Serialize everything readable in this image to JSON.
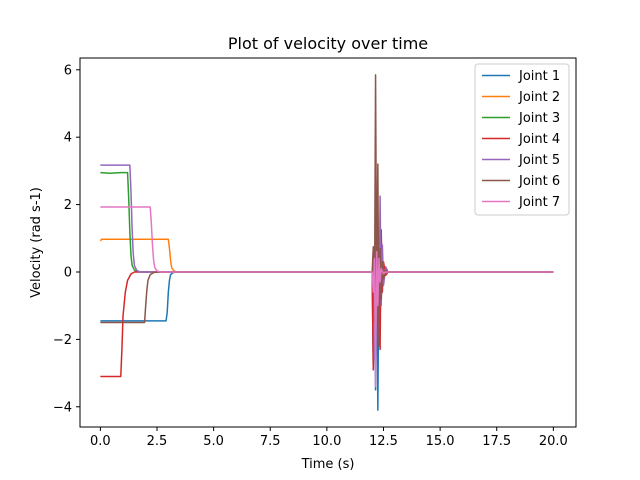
{
  "chart_data": {
    "type": "line",
    "title": "Plot of velocity over time",
    "xlabel": "Time (s)",
    "ylabel": "Velocity (rad s-1)",
    "xlim": [
      -0.9,
      21.0
    ],
    "ylim": [
      -4.6,
      6.35
    ],
    "xticks": [
      0.0,
      2.5,
      5.0,
      7.5,
      10.0,
      12.5,
      15.0,
      17.5,
      20.0
    ],
    "xtick_labels": [
      "0.0",
      "2.5",
      "5.0",
      "7.5",
      "10.0",
      "12.5",
      "15.0",
      "17.5",
      "20.0"
    ],
    "yticks": [
      -4,
      -2,
      0,
      2,
      4,
      6
    ],
    "ytick_labels": [
      "−4",
      "−2",
      "0",
      "2",
      "4",
      "6"
    ],
    "grid": false,
    "legend_position": "top-right",
    "series": [
      {
        "name": "Joint 1",
        "color": "#1f77b4",
        "x": [
          0,
          2.9,
          2.95,
          3.0,
          3.05,
          3.1,
          3.2,
          3.35,
          12.0,
          12.05,
          12.1,
          12.15,
          12.2,
          12.25,
          12.3,
          12.35,
          12.4,
          12.5,
          12.6,
          12.7,
          20.0
        ],
        "y": [
          -1.45,
          -1.45,
          -1.2,
          -0.6,
          -0.25,
          -0.08,
          -0.02,
          0,
          0,
          -2.9,
          0.2,
          -3.5,
          0.5,
          -4.1,
          0.3,
          -0.5,
          0.1,
          -0.1,
          0.03,
          0,
          0
        ]
      },
      {
        "name": "Joint 2",
        "color": "#ff7f0e",
        "x": [
          0,
          0.05,
          3.0,
          3.05,
          3.1,
          3.15,
          3.25,
          3.4,
          12.0,
          12.1,
          12.2,
          12.3,
          12.4,
          12.5,
          12.6,
          20.0
        ],
        "y": [
          0.92,
          0.97,
          0.97,
          0.7,
          0.35,
          0.12,
          0.03,
          0,
          0,
          0.25,
          -0.3,
          0.4,
          -0.2,
          0.1,
          0,
          0
        ]
      },
      {
        "name": "Joint 3",
        "color": "#2ca02c",
        "x": [
          0,
          0.4,
          0.9,
          1.2,
          1.25,
          1.3,
          1.35,
          1.4,
          1.5,
          1.6,
          1.75,
          12.0,
          12.05,
          12.1,
          12.15,
          12.2,
          12.3,
          12.4,
          12.5,
          20.0
        ],
        "y": [
          2.95,
          2.93,
          2.95,
          2.95,
          2.2,
          1.2,
          0.5,
          0.2,
          0.06,
          0.02,
          0,
          0,
          0.2,
          -0.3,
          0.3,
          -0.2,
          0.1,
          -0.05,
          0,
          0
        ]
      },
      {
        "name": "Joint 4",
        "color": "#d62728",
        "x": [
          0,
          0.9,
          0.95,
          1.0,
          1.1,
          1.2,
          1.35,
          1.5,
          12.0,
          12.05,
          12.1,
          12.15,
          12.2,
          12.25,
          12.3,
          12.35,
          12.4,
          12.45,
          12.5,
          12.6,
          12.7,
          20.0
        ],
        "y": [
          -3.1,
          -3.1,
          -2.3,
          -1.3,
          -0.6,
          -0.25,
          -0.06,
          0,
          0,
          -2.9,
          0.6,
          -1.8,
          1.8,
          -1.0,
          0.9,
          -2.3,
          1.25,
          -0.6,
          0.3,
          -0.1,
          0,
          0
        ]
      },
      {
        "name": "Joint 5",
        "color": "#9467bd",
        "x": [
          0,
          1.3,
          1.35,
          1.4,
          1.45,
          1.5,
          1.6,
          1.75,
          12.0,
          12.05,
          12.1,
          12.15,
          12.2,
          12.25,
          12.3,
          12.35,
          12.4,
          12.45,
          12.5,
          12.6,
          12.7,
          20.0
        ],
        "y": [
          3.17,
          3.17,
          2.4,
          1.3,
          0.55,
          0.2,
          0.05,
          0,
          0,
          0.3,
          -2.6,
          0.9,
          -0.6,
          1.5,
          -1.9,
          2.25,
          -1.0,
          0.8,
          -0.4,
          0.15,
          0,
          0
        ]
      },
      {
        "name": "Joint 6",
        "color": "#8c564b",
        "x": [
          0,
          1.95,
          2.0,
          2.05,
          2.1,
          2.2,
          2.35,
          2.5,
          12.0,
          12.05,
          12.1,
          12.15,
          12.2,
          12.25,
          12.3,
          12.35,
          12.4,
          12.45,
          12.5,
          12.6,
          12.7,
          20.0
        ],
        "y": [
          -1.5,
          -1.5,
          -1.0,
          -0.55,
          -0.25,
          -0.08,
          -0.02,
          0,
          0,
          0.75,
          -1.5,
          5.85,
          -1.0,
          3.2,
          -2.2,
          0.7,
          -0.8,
          0.3,
          -0.2,
          0.05,
          0,
          0
        ]
      },
      {
        "name": "Joint 7",
        "color": "#e377c2",
        "x": [
          0,
          2.2,
          2.25,
          2.3,
          2.35,
          2.4,
          2.5,
          2.65,
          12.0,
          12.05,
          12.1,
          12.15,
          12.2,
          12.25,
          12.3,
          12.35,
          12.4,
          12.5,
          12.6,
          20.0
        ],
        "y": [
          1.93,
          1.93,
          1.45,
          0.8,
          0.35,
          0.13,
          0.03,
          0,
          0,
          -0.6,
          0.4,
          -3.4,
          0.6,
          -1.0,
          0.4,
          -0.3,
          0.1,
          -0.05,
          0,
          0
        ]
      }
    ]
  }
}
